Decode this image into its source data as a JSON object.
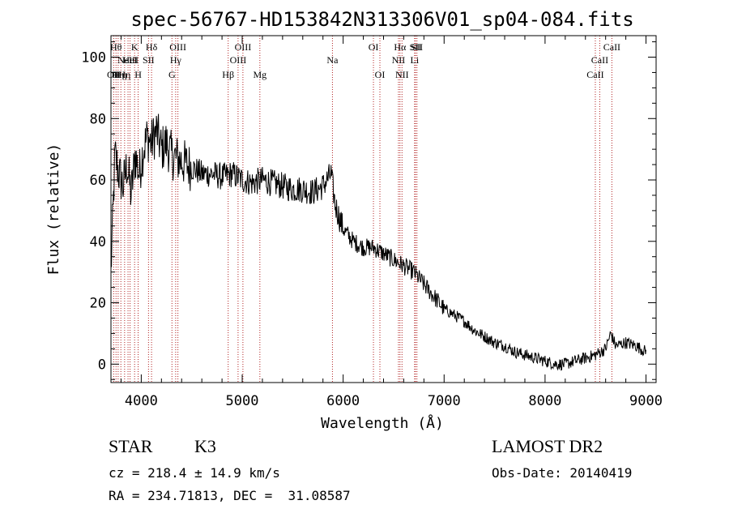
{
  "chart_data": {
    "type": "line",
    "title": "spec-56767-HD153842N313306V01_sp04-084.fits",
    "xlabel": "Wavelength (Å)",
    "ylabel": "Flux (relative)",
    "xlim": [
      3700,
      9100
    ],
    "ylim": [
      -6,
      107
    ],
    "x_ticks": [
      4000,
      5000,
      6000,
      7000,
      8000,
      9000
    ],
    "x_tick_labels": [
      "4000",
      "5000",
      "6000",
      "7000",
      "8000",
      "9000"
    ],
    "y_ticks": [
      0,
      20,
      40,
      60,
      80,
      100
    ],
    "y_tick_labels": [
      "0",
      "20",
      "40",
      "60",
      "80",
      "100"
    ],
    "grid": false,
    "series": [
      {
        "color": "#000000",
        "x": [
          3700,
          3740,
          3780,
          3820,
          3860,
          3900,
          3940,
          3980,
          4020,
          4060,
          4100,
          4150,
          4200,
          4250,
          4300,
          4350,
          4400,
          4500,
          4600,
          4700,
          4800,
          4900,
          5000,
          5100,
          5200,
          5300,
          5400,
          5500,
          5600,
          5700,
          5800,
          5880,
          5920,
          6000,
          6100,
          6200,
          6300,
          6400,
          6500,
          6600,
          6700,
          6800,
          6900,
          7000,
          7100,
          7200,
          7300,
          7400,
          7500,
          7600,
          7700,
          7800,
          7900,
          8000,
          8100,
          8200,
          8300,
          8400,
          8500,
          8600,
          8650,
          8700,
          8800,
          8900,
          9000
        ],
        "values": [
          30,
          68,
          62,
          58,
          65,
          55,
          68,
          62,
          70,
          74,
          72,
          76,
          70,
          72,
          68,
          67,
          66,
          64,
          62,
          62,
          61,
          62,
          60,
          59,
          60,
          59,
          58,
          57,
          57,
          56,
          58,
          62,
          52,
          44,
          40,
          38,
          38,
          36,
          34,
          32,
          30,
          26,
          22,
          18,
          16,
          14,
          11,
          9,
          7,
          6,
          4,
          3,
          2,
          1,
          0,
          0,
          1,
          2,
          3,
          5,
          10,
          6,
          7,
          6,
          4
        ]
      }
    ],
    "lines": [
      {
        "wavelength": 3727,
        "label": "OII",
        "row": 3
      },
      {
        "wavelength": 3750,
        "label": "Hθ",
        "row": 1
      },
      {
        "wavelength": 3771,
        "label": "Hη",
        "row": 3
      },
      {
        "wavelength": 3798,
        "label": "Hη",
        "row": 3
      },
      {
        "wavelength": 3835,
        "label": "Hη",
        "row": 3
      },
      {
        "wavelength": 3869,
        "label": "NeIII",
        "row": 2
      },
      {
        "wavelength": 3889,
        "label": "HeI",
        "row": 2
      },
      {
        "wavelength": 3934,
        "label": "K",
        "row": 1
      },
      {
        "wavelength": 3969,
        "label": "H",
        "row": 3
      },
      {
        "wavelength": 4072,
        "label": "SII",
        "row": 2
      },
      {
        "wavelength": 4102,
        "label": "Hδ",
        "row": 1
      },
      {
        "wavelength": 4304,
        "label": "G",
        "row": 3
      },
      {
        "wavelength": 4341,
        "label": "Hγ",
        "row": 2
      },
      {
        "wavelength": 4363,
        "label": "OIII",
        "row": 1
      },
      {
        "wavelength": 4861,
        "label": "Hβ",
        "row": 3
      },
      {
        "wavelength": 4959,
        "label": "OIII",
        "row": 2
      },
      {
        "wavelength": 5007,
        "label": "OIII",
        "row": 1
      },
      {
        "wavelength": 5175,
        "label": "Mg",
        "row": 3
      },
      {
        "wavelength": 5894,
        "label": "Na",
        "row": 2
      },
      {
        "wavelength": 6300,
        "label": "OI",
        "row": 1
      },
      {
        "wavelength": 6364,
        "label": "OI",
        "row": 3
      },
      {
        "wavelength": 6548,
        "label": "NII",
        "row": 2
      },
      {
        "wavelength": 6563,
        "label": "Hα",
        "row": 1
      },
      {
        "wavelength": 6583,
        "label": "NII",
        "row": 3
      },
      {
        "wavelength": 6708,
        "label": "Li",
        "row": 2
      },
      {
        "wavelength": 6716,
        "label": "SII",
        "row": 1
      },
      {
        "wavelength": 6731,
        "label": "SII",
        "row": 1
      },
      {
        "wavelength": 8498,
        "label": "CaII",
        "row": 3
      },
      {
        "wavelength": 8542,
        "label": "CaII",
        "row": 2
      },
      {
        "wavelength": 8662,
        "label": "CaII",
        "row": 1
      }
    ]
  },
  "info": {
    "class_label": "STAR",
    "subclass": "K3",
    "survey": "LAMOST DR2",
    "cz": "cz = 218.4 ± 14.9 km/s",
    "obs_date": "Obs-Date: 20140419",
    "radec": "RA = 234.71813, DEC =  31.08587"
  }
}
